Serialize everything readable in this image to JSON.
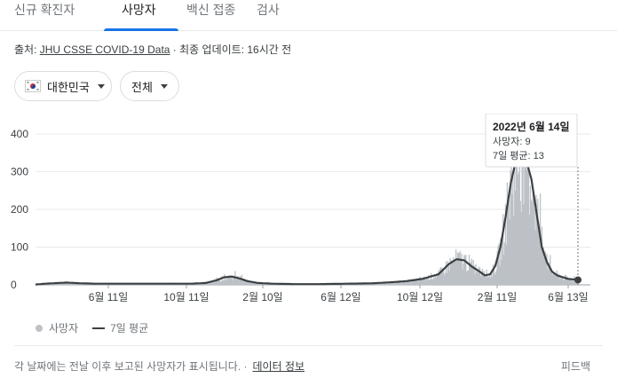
{
  "tabs": [
    {
      "label": "신규 확진자",
      "active": false
    },
    {
      "label": "사망자",
      "active": true
    },
    {
      "label": "백신 접종",
      "active": false
    },
    {
      "label": "검사",
      "active": false
    }
  ],
  "source": {
    "prefix": "출처: ",
    "link": "JHU CSSE COVID-19 Data",
    "suffix": " · 최종 업데이트: 16시간 전"
  },
  "filters": {
    "region": "대한민국",
    "scope": "전체"
  },
  "colors": {
    "accent": "#1a73e8",
    "bars": "#bdc1c6",
    "avg_line": "#3c4043"
  },
  "chart_data": {
    "type": "bar",
    "x_ticks": [
      "6월 11일",
      "10월 11일",
      "2월 10일",
      "6월 12일",
      "10월 12일",
      "2월 11일",
      "6월 13일"
    ],
    "y_ticks": [
      0,
      100,
      200,
      300,
      400
    ],
    "ylim": [
      0,
      400
    ],
    "grid": true,
    "series": [
      {
        "name": "사망자",
        "style": "bars"
      },
      {
        "name": "7일 평균",
        "style": "line"
      }
    ],
    "avg_curve": [
      [
        0,
        1
      ],
      [
        0.03,
        4
      ],
      [
        0.06,
        6
      ],
      [
        0.09,
        4
      ],
      [
        0.12,
        3
      ],
      [
        0.15,
        3
      ],
      [
        0.2,
        3
      ],
      [
        0.25,
        3
      ],
      [
        0.3,
        3
      ],
      [
        0.33,
        5
      ],
      [
        0.35,
        12
      ],
      [
        0.365,
        20
      ],
      [
        0.38,
        22
      ],
      [
        0.395,
        17
      ],
      [
        0.41,
        10
      ],
      [
        0.43,
        5
      ],
      [
        0.46,
        3
      ],
      [
        0.5,
        2
      ],
      [
        0.55,
        2
      ],
      [
        0.6,
        3
      ],
      [
        0.65,
        4
      ],
      [
        0.69,
        7
      ],
      [
        0.72,
        10
      ],
      [
        0.75,
        16
      ],
      [
        0.78,
        28
      ],
      [
        0.8,
        55
      ],
      [
        0.815,
        68
      ],
      [
        0.83,
        65
      ],
      [
        0.845,
        48
      ],
      [
        0.86,
        35
      ],
      [
        0.87,
        25
      ],
      [
        0.88,
        28
      ],
      [
        0.89,
        50
      ],
      [
        0.9,
        100
      ],
      [
        0.91,
        180
      ],
      [
        0.92,
        270
      ],
      [
        0.93,
        330
      ],
      [
        0.94,
        345
      ],
      [
        0.95,
        330
      ],
      [
        0.96,
        280
      ],
      [
        0.97,
        190
      ],
      [
        0.98,
        100
      ],
      [
        0.99,
        60
      ],
      [
        1.0,
        35
      ],
      [
        1.01,
        25
      ],
      [
        1.03,
        16
      ],
      [
        1.05,
        13
      ]
    ],
    "tooltip": {
      "date": "2022년 6월 14일",
      "deaths_label": "사망자: 9",
      "avg_label": "7일 평균: 13"
    }
  },
  "legend": {
    "bars_label": "사망자",
    "avg_label": "7일 평균"
  },
  "footer": {
    "note": "각 날짜에는 전날 이후 보고된 사망자가 표시됩니다. ·",
    "link": "데이터 정보",
    "feedback": "피드백"
  }
}
